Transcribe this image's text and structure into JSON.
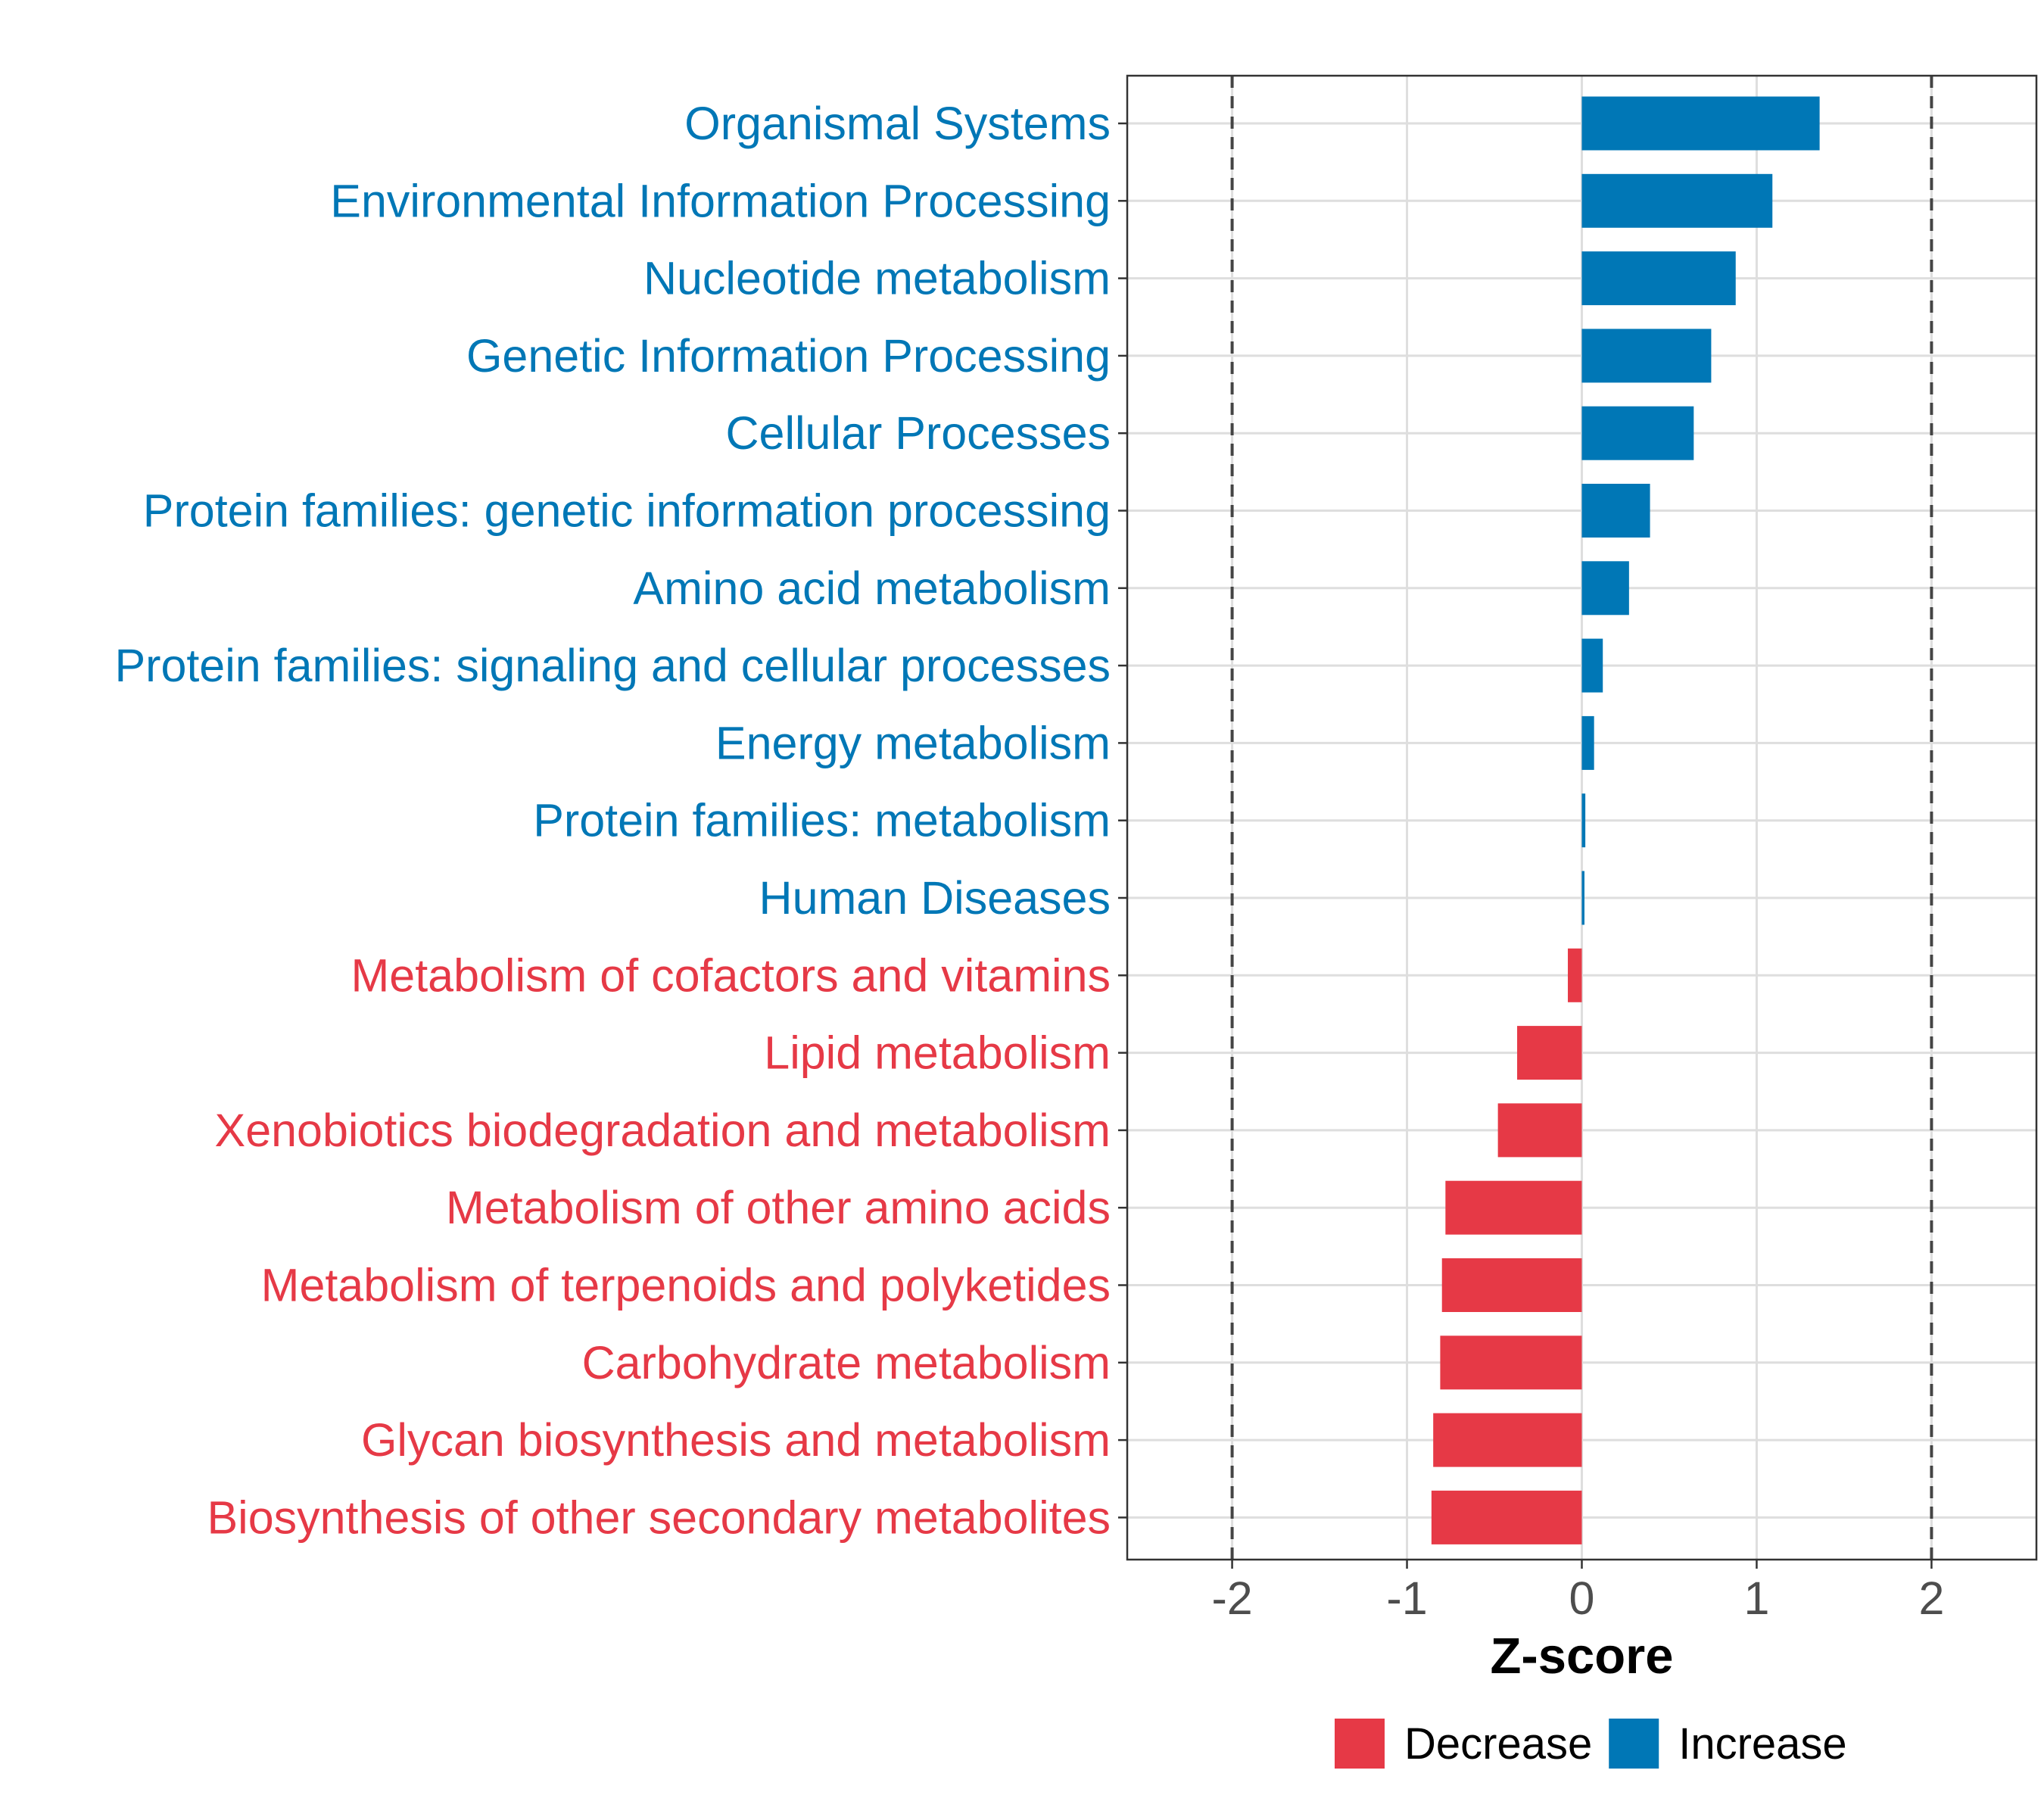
{
  "chart_data": {
    "type": "bar",
    "orientation": "horizontal",
    "xlabel": "Z-score",
    "ylabel": "",
    "xlim": [
      -2.6,
      2.6
    ],
    "xticks": [
      -2,
      -1,
      0,
      1,
      2
    ],
    "reference_lines": [
      -2,
      2
    ],
    "grid": true,
    "legend_position": "bottom",
    "legend": [
      {
        "label": "Decrease",
        "color": "#e63946"
      },
      {
        "label": "Increase",
        "color": "#0077b6"
      }
    ],
    "colors": {
      "Increase": "#0077b6",
      "Decrease": "#e63946"
    },
    "categories": [
      "Organismal Systems",
      "Environmental Information Processing",
      "Nucleotide metabolism",
      "Genetic Information Processing",
      "Cellular Processes",
      "Protein families: genetic information processing",
      "Amino acid metabolism",
      "Protein families: signaling and cellular processes",
      "Energy metabolism",
      "Protein families: metabolism",
      "Human Diseases",
      "Metabolism of cofactors and vitamins",
      "Lipid metabolism",
      "Xenobiotics biodegradation and metabolism",
      "Metabolism of other amino acids",
      "Metabolism of terpenoids and polyketides",
      "Carbohydrate metabolism",
      "Glycan biosynthesis and metabolism",
      "Biosynthesis of other secondary metabolites"
    ],
    "values": [
      1.36,
      1.09,
      0.88,
      0.74,
      0.64,
      0.39,
      0.27,
      0.12,
      0.07,
      0.02,
      0.015,
      -0.08,
      -0.37,
      -0.48,
      -0.78,
      -0.8,
      -0.81,
      -0.85,
      -0.86
    ],
    "groups": [
      "Increase",
      "Increase",
      "Increase",
      "Increase",
      "Increase",
      "Increase",
      "Increase",
      "Increase",
      "Increase",
      "Increase",
      "Increase",
      "Decrease",
      "Decrease",
      "Decrease",
      "Decrease",
      "Decrease",
      "Decrease",
      "Decrease",
      "Decrease"
    ]
  }
}
